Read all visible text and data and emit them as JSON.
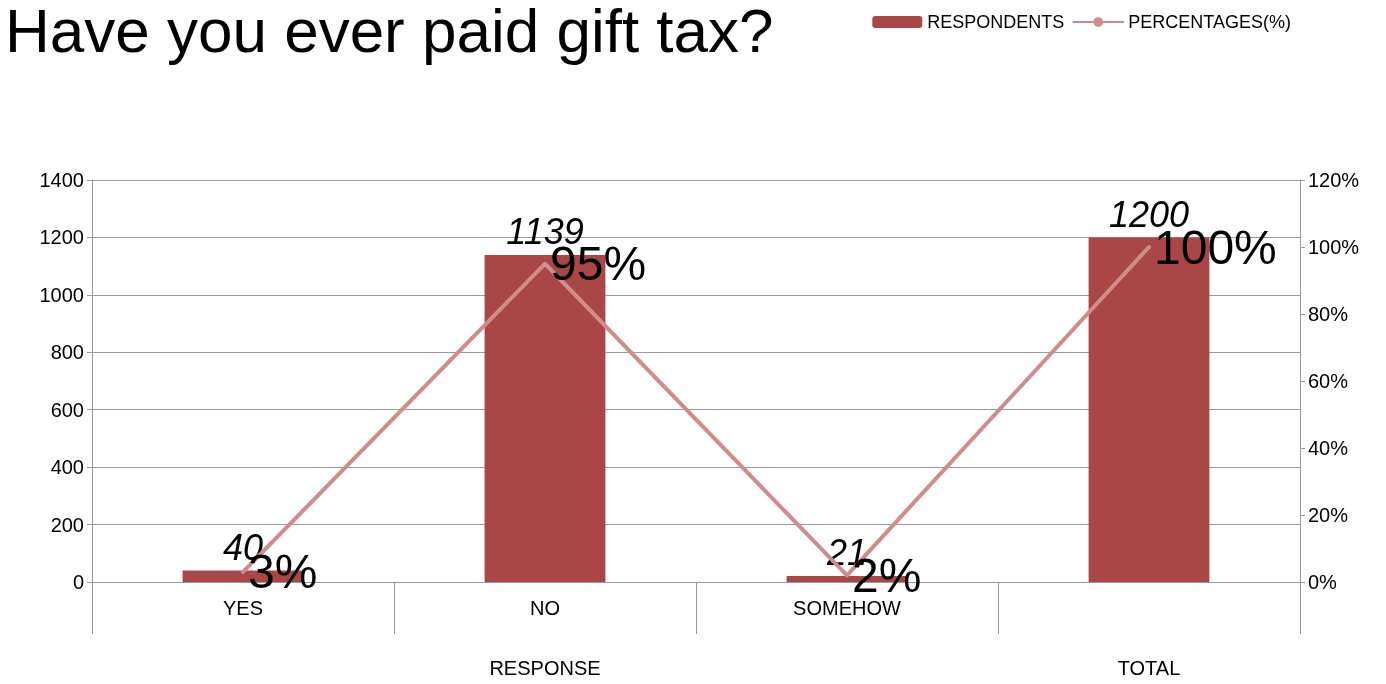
{
  "chart_data": {
    "type": "bar",
    "title": "Have you ever paid gift tax?",
    "categories": [
      "YES",
      "NO",
      "SOMEHOW",
      null
    ],
    "series": [
      {
        "name": "RESPONDENTS",
        "color": "#a84745",
        "values": [
          40,
          1139,
          21,
          1200
        ]
      },
      {
        "name": "PERCENTAGES(%)",
        "type": "line",
        "axis": "y2",
        "color": "#d08c8c",
        "values": [
          3,
          95,
          2,
          100
        ],
        "value_labels": [
          "3%",
          "95%",
          "2%",
          "100%"
        ]
      }
    ],
    "annotations": [
      "RESPONSE",
      "TOTAL"
    ],
    "ylim": [
      0,
      1400
    ],
    "yticks": [
      0,
      200,
      400,
      600,
      800,
      1000,
      1200,
      1400
    ],
    "y2lim": [
      0,
      120
    ],
    "y2ticks": [
      {
        "value": 0,
        "label": "0%"
      },
      {
        "value": 20,
        "label": "20%"
      },
      {
        "value": 40,
        "label": "40%"
      },
      {
        "value": 60,
        "label": "60%"
      },
      {
        "value": 80,
        "label": "80%"
      },
      {
        "value": 100,
        "label": "100%"
      },
      {
        "value": 120,
        "label": "120%"
      }
    ],
    "data_labels": true,
    "grid": "y",
    "legend": "top right",
    "marker": "none",
    "line_style": "solid"
  }
}
